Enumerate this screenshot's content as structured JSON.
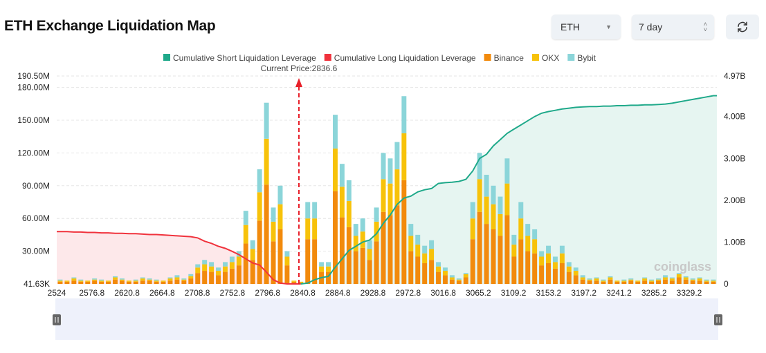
{
  "header": {
    "title": "ETH Exchange Liquidation Map",
    "coin_select": "ETH",
    "period_select": "7 day",
    "refresh_icon": "refresh-icon"
  },
  "colors": {
    "short_cum": "#1fa98a",
    "long_cum": "#f0323c",
    "binance": "#f28a0c",
    "okx": "#f7c20a",
    "bybit": "#8bd5d9"
  },
  "chart_data": {
    "type": "bar",
    "annotation": "Current Price:2836.6",
    "current_price": 2836.6,
    "legend": [
      "Cumulative Short Liquidation Leverage",
      "Cumulative Long Liquidation Leverage",
      "Binance",
      "OKX",
      "Bybit"
    ],
    "legend_position": "top",
    "x_tick_labels": [
      "2524",
      "2576.8",
      "2620.8",
      "2664.8",
      "2708.8",
      "2752.8",
      "2796.8",
      "2840.8",
      "2884.8",
      "2928.8",
      "2972.8",
      "3016.8",
      "3065.2",
      "3109.2",
      "3153.2",
      "3197.2",
      "3241.2",
      "3285.2",
      "3329.2"
    ],
    "y_left_ticks": [
      "41.63K",
      "30.00M",
      "60.00M",
      "90.00M",
      "120.00M",
      "150.00M",
      "180.00M",
      "190.50M"
    ],
    "y_left_range_millions": [
      0,
      190.5
    ],
    "y_right_ticks": [
      "0",
      "1.00B",
      "2.00B",
      "3.00B",
      "4.00B",
      "4.97B"
    ],
    "y_right_range_billions": [
      0,
      4.97
    ],
    "grid": true,
    "series": [
      {
        "name": "Binance",
        "values": [
          2,
          2,
          3,
          2,
          2,
          3,
          2,
          2,
          4,
          3,
          2,
          2,
          3,
          3,
          2,
          2,
          3,
          4,
          3,
          5,
          10,
          12,
          11,
          8,
          11,
          14,
          17,
          37,
          22,
          58,
          91,
          39,
          50,
          17,
          2,
          1,
          41,
          41,
          11,
          11,
          85,
          61,
          52,
          30,
          33,
          22,
          39,
          66,
          63,
          72,
          95,
          30,
          25,
          19,
          22,
          11,
          8,
          4,
          3,
          6,
          41,
          66,
          55,
          50,
          44,
          63,
          25,
          41,
          30,
          28,
          17,
          19,
          14,
          19,
          11,
          8,
          4,
          3,
          3,
          2,
          4,
          2,
          2,
          3,
          2,
          3,
          2,
          3,
          4,
          3,
          6,
          4,
          3,
          3,
          2,
          2
        ]
      },
      {
        "name": "OKX",
        "values": [
          1,
          1,
          2,
          1,
          1,
          1,
          1,
          1,
          2,
          1,
          1,
          1,
          2,
          1,
          1,
          1,
          2,
          2,
          1,
          2,
          5,
          6,
          5,
          4,
          5,
          6,
          8,
          17,
          10,
          26,
          42,
          18,
          23,
          8,
          1,
          1,
          19,
          19,
          5,
          5,
          39,
          28,
          24,
          14,
          15,
          10,
          18,
          30,
          29,
          33,
          43,
          14,
          11,
          9,
          10,
          5,
          4,
          2,
          1,
          3,
          19,
          30,
          25,
          23,
          20,
          29,
          11,
          19,
          14,
          13,
          8,
          9,
          6,
          9,
          5,
          4,
          2,
          1,
          2,
          1,
          2,
          1,
          1,
          1,
          1,
          2,
          1,
          1,
          2,
          2,
          3,
          2,
          1,
          2,
          1,
          1
        ]
      },
      {
        "name": "Bybit",
        "values": [
          1,
          0,
          1,
          1,
          0,
          1,
          1,
          0,
          1,
          1,
          0,
          1,
          1,
          1,
          1,
          0,
          1,
          2,
          1,
          2,
          3,
          4,
          4,
          3,
          4,
          5,
          5,
          13,
          8,
          21,
          33,
          13,
          17,
          5,
          0,
          0,
          15,
          15,
          4,
          4,
          31,
          21,
          19,
          11,
          12,
          8,
          13,
          24,
          23,
          25,
          34,
          11,
          9,
          7,
          8,
          4,
          3,
          2,
          1,
          1,
          15,
          24,
          20,
          17,
          16,
          23,
          9,
          15,
          11,
          9,
          5,
          7,
          5,
          7,
          4,
          3,
          2,
          1,
          1,
          1,
          1,
          0,
          1,
          1,
          0,
          1,
          1,
          1,
          2,
          1,
          1,
          1,
          1,
          1,
          1,
          1
        ]
      },
      {
        "name": "Cumulative Long Liquidation Leverage",
        "values": [
          1.25,
          1.25,
          1.24,
          1.24,
          1.23,
          1.23,
          1.22,
          1.22,
          1.21,
          1.21,
          1.2,
          1.2,
          1.19,
          1.18,
          1.18,
          1.17,
          1.16,
          1.15,
          1.14,
          1.13,
          1.1,
          1.02,
          0.97,
          0.9,
          0.85,
          0.78,
          0.7,
          0.6,
          0.5,
          0.45,
          0.28,
          0.1,
          0.02,
          0,
          0,
          0,
          null,
          null,
          null,
          null,
          null,
          null,
          null,
          null,
          null,
          null,
          null,
          null,
          null,
          null,
          null,
          null,
          null,
          null,
          null,
          null,
          null,
          null,
          null,
          null,
          null,
          null,
          null,
          null,
          null,
          null,
          null,
          null,
          null,
          null,
          null,
          null,
          null,
          null,
          null,
          null,
          null,
          null,
          null,
          null,
          null,
          null,
          null,
          null,
          null,
          null,
          null,
          null,
          null,
          null,
          null,
          null,
          null,
          null,
          null,
          null
        ]
      },
      {
        "name": "Cumulative Short Liquidation Leverage",
        "values": [
          null,
          null,
          null,
          null,
          null,
          null,
          null,
          null,
          null,
          null,
          null,
          null,
          null,
          null,
          null,
          null,
          null,
          null,
          null,
          null,
          null,
          null,
          null,
          null,
          null,
          null,
          null,
          null,
          null,
          null,
          null,
          null,
          null,
          null,
          null,
          0,
          0.02,
          0.1,
          0.15,
          0.18,
          0.4,
          0.6,
          0.8,
          0.9,
          1.0,
          1.05,
          1.2,
          1.45,
          1.65,
          1.9,
          2.05,
          2.1,
          2.2,
          2.25,
          2.28,
          2.4,
          2.42,
          2.43,
          2.45,
          2.5,
          2.7,
          3.0,
          3.1,
          3.3,
          3.45,
          3.6,
          3.7,
          3.8,
          3.9,
          4.0,
          4.08,
          4.12,
          4.15,
          4.18,
          4.2,
          4.22,
          4.23,
          4.24,
          4.24,
          4.25,
          4.25,
          4.26,
          4.26,
          4.27,
          4.27,
          4.28,
          4.28,
          4.29,
          4.3,
          4.32,
          4.35,
          4.38,
          4.41,
          4.44,
          4.47,
          4.5
        ]
      }
    ],
    "watermark": "coinglass"
  }
}
